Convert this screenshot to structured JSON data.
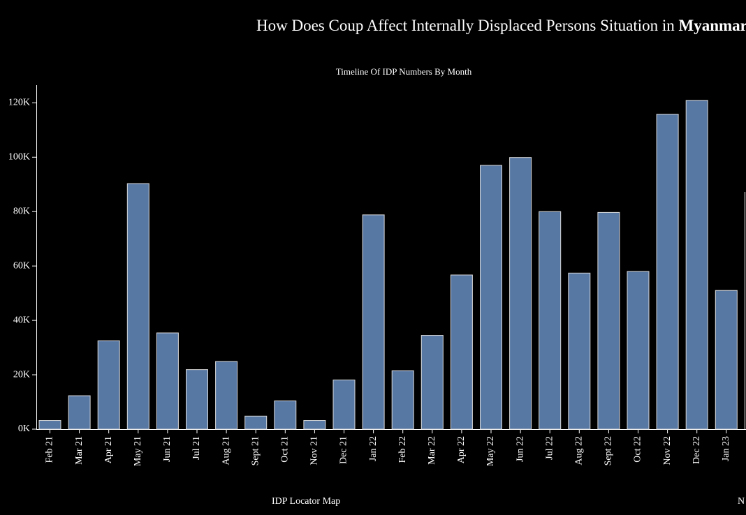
{
  "page": {
    "title_prefix": "How Does Coup Affect Internally Displaced Persons Situation in ",
    "title_emphasis": "Myanmar",
    "bottom_left_label": "IDP Locator Map",
    "bottom_right_label": "N"
  },
  "colors": {
    "background": "#000000",
    "bar_fill": "#5878a4",
    "bar_stroke": "#d9d9d9",
    "text": "#ffffff"
  },
  "chart_data": {
    "type": "bar",
    "title": "Timeline Of  IDP Numbers By Month",
    "xlabel": "",
    "ylabel": "",
    "ylim": [
      0,
      126500
    ],
    "yticks": [
      0,
      20000,
      40000,
      60000,
      80000,
      100000,
      120000
    ],
    "ytick_labels": [
      "0K",
      "20K",
      "40K",
      "60K",
      "80K",
      "100K",
      "120K"
    ],
    "grid": false,
    "categories": [
      "Feb 21",
      "Mar 21",
      "Apr 21",
      "May 21",
      "Jun 21",
      "Jul 21",
      "Aug 21",
      "Sept 21",
      "Oct 21",
      "Nov 21",
      "Dec 21",
      "Jan 22",
      "Feb 22",
      "Mar 22",
      "Apr 22",
      "May 22",
      "Jun 22",
      "Jul 22",
      "Aug 22",
      "Sept 22",
      "Oct 22",
      "Nov 22",
      "Dec 22",
      "Jan 23"
    ],
    "values": [
      3200,
      12300,
      32500,
      90300,
      35400,
      21900,
      24900,
      4800,
      10400,
      3200,
      18100,
      78800,
      21500,
      34500,
      56700,
      97000,
      99900,
      80000,
      57400,
      79700,
      58000,
      115800,
      120900,
      51000
    ]
  }
}
